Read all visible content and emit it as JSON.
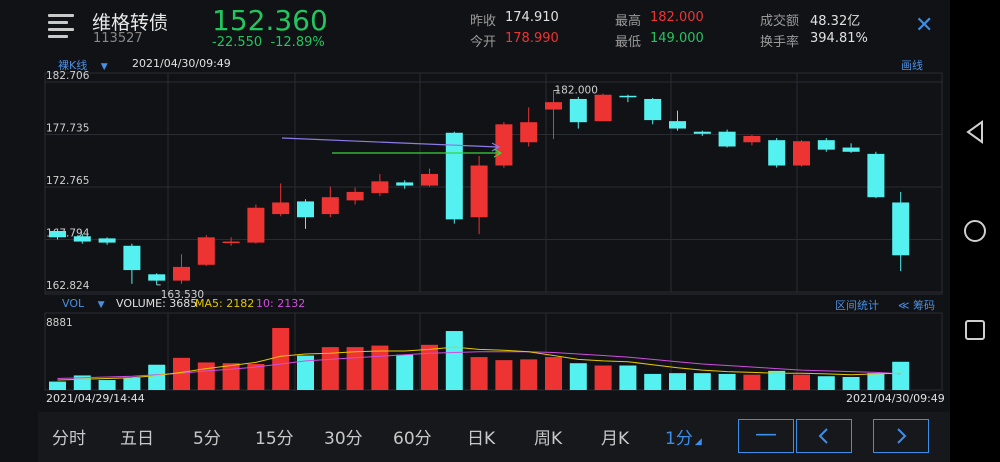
{
  "header": {
    "name": "维格转债",
    "code": "113527",
    "price": "152.360",
    "change": "-22.550",
    "change_pct": "-12.89%",
    "prev_close_label": "昨收",
    "prev_close": "174.910",
    "open_label": "今开",
    "open": "178.990",
    "high_label": "最高",
    "high": "182.000",
    "low_label": "最低",
    "low": "149.000",
    "turnover_label": "成交额",
    "turnover": "48.32亿",
    "turnover_rate_label": "换手率",
    "turnover_rate": "394.81%"
  },
  "kline_panel": {
    "mode_label": "裸K线",
    "timestamp": "2021/04/30/09:49",
    "draw_label": "画线",
    "high_mark": "182.000",
    "low_mark": "163.530"
  },
  "volume_panel": {
    "vol_label": "VOL",
    "volume_label": "VOLUME: 3685",
    "ma5_label": "MA5: 2182",
    "ma10_label": "10: 2132",
    "max_label": "8881",
    "interval_stats": "区间统计",
    "chips": "≪ 筹码",
    "start_time": "2021/04/29/14:44",
    "end_time": "2021/04/30/09:49"
  },
  "tabs": [
    "分时",
    "五日",
    "5分",
    "15分",
    "30分",
    "60分",
    "日K",
    "周K",
    "月K",
    "1分"
  ],
  "active_tab": "1分",
  "colors": {
    "up": "#ee3333",
    "down": "#55f0f0",
    "accent": "#3b8fe8",
    "green": "#22c55e",
    "ma5": "#e6c800",
    "ma10": "#d04ee0"
  },
  "icons": [
    "menu-icon",
    "close-icon",
    "minus-icon",
    "chevron-left-icon",
    "chevron-right-icon",
    "back-icon",
    "home-icon",
    "recents-icon"
  ],
  "chart_data": [
    {
      "type": "candlestick",
      "y_ticks": [
        182.706,
        177.735,
        172.765,
        167.794,
        162.824
      ],
      "ylim": [
        162.824,
        182.706
      ],
      "candles": [
        {
          "o": 168.6,
          "c": 168.0,
          "h": 168.8,
          "l": 167.8
        },
        {
          "o": 168.1,
          "c": 167.6,
          "h": 168.3,
          "l": 167.4
        },
        {
          "o": 167.9,
          "c": 167.5,
          "h": 168.0,
          "l": 167.3
        },
        {
          "o": 167.2,
          "c": 164.9,
          "h": 167.4,
          "l": 163.6
        },
        {
          "o": 164.5,
          "c": 163.9,
          "h": 164.6,
          "l": 163.5
        },
        {
          "o": 163.9,
          "c": 165.2,
          "h": 166.4,
          "l": 163.6
        },
        {
          "o": 165.4,
          "c": 168.0,
          "h": 168.2,
          "l": 165.3
        },
        {
          "o": 167.6,
          "c": 167.6,
          "h": 168.0,
          "l": 167.2
        },
        {
          "o": 167.5,
          "c": 170.8,
          "h": 171.1,
          "l": 167.4
        },
        {
          "o": 170.2,
          "c": 171.3,
          "h": 173.1,
          "l": 170.0
        },
        {
          "o": 171.4,
          "c": 169.9,
          "h": 171.6,
          "l": 168.8
        },
        {
          "o": 170.2,
          "c": 171.8,
          "h": 172.8,
          "l": 169.9
        },
        {
          "o": 171.5,
          "c": 172.3,
          "h": 172.7,
          "l": 171.1
        },
        {
          "o": 172.2,
          "c": 173.3,
          "h": 174.0,
          "l": 171.9
        },
        {
          "o": 173.2,
          "c": 172.9,
          "h": 173.4,
          "l": 172.6
        },
        {
          "o": 172.9,
          "c": 174.0,
          "h": 174.5,
          "l": 172.8
        },
        {
          "o": 177.9,
          "c": 169.7,
          "h": 178.0,
          "l": 169.3
        },
        {
          "o": 169.9,
          "c": 174.8,
          "h": 175.7,
          "l": 168.3
        },
        {
          "o": 174.8,
          "c": 178.7,
          "h": 178.9,
          "l": 174.6
        },
        {
          "o": 177.0,
          "c": 178.9,
          "h": 180.3,
          "l": 176.6
        },
        {
          "o": 180.1,
          "c": 180.8,
          "h": 181.9,
          "l": 177.3
        },
        {
          "o": 181.1,
          "c": 178.9,
          "h": 181.3,
          "l": 178.3
        },
        {
          "o": 179.0,
          "c": 181.5,
          "h": 181.6,
          "l": 179.0
        },
        {
          "o": 181.4,
          "c": 181.3,
          "h": 181.5,
          "l": 180.8
        },
        {
          "o": 181.1,
          "c": 179.1,
          "h": 181.2,
          "l": 178.7
        },
        {
          "o": 179.0,
          "c": 178.3,
          "h": 180.0,
          "l": 178.1
        },
        {
          "o": 178.0,
          "c": 177.8,
          "h": 178.1,
          "l": 177.6
        },
        {
          "o": 178.0,
          "c": 176.6,
          "h": 178.2,
          "l": 176.5
        },
        {
          "o": 177.0,
          "c": 177.6,
          "h": 177.7,
          "l": 176.7
        },
        {
          "o": 177.2,
          "c": 174.8,
          "h": 177.4,
          "l": 174.6
        },
        {
          "o": 174.8,
          "c": 177.1,
          "h": 177.2,
          "l": 174.7
        },
        {
          "o": 177.2,
          "c": 176.3,
          "h": 177.4,
          "l": 176.1
        },
        {
          "o": 176.5,
          "c": 176.1,
          "h": 176.9,
          "l": 176.0
        },
        {
          "o": 175.9,
          "c": 171.8,
          "h": 176.1,
          "l": 171.7
        },
        {
          "o": 171.3,
          "c": 166.3,
          "h": 172.3,
          "l": 164.8
        }
      ]
    },
    {
      "type": "bar",
      "ylim": [
        0,
        8881
      ],
      "values": [
        1100,
        1900,
        1300,
        1600,
        3300,
        4200,
        3600,
        3500,
        3400,
        8100,
        4500,
        5600,
        5600,
        5800,
        4600,
        5900,
        7700,
        4300,
        3900,
        4000,
        4300,
        3500,
        3200,
        3200,
        2100,
        2200,
        2200,
        2100,
        2000,
        2500,
        2000,
        1800,
        1700,
        2200,
        3685
      ],
      "ma5": [
        1300,
        1400,
        1500,
        1600,
        1900,
        2300,
        2800,
        3200,
        3600,
        4400,
        4700,
        4800,
        5000,
        5100,
        5100,
        5300,
        5600,
        5300,
        5200,
        5000,
        4500,
        4000,
        3800,
        3700,
        3300,
        2900,
        2600,
        2400,
        2300,
        2200,
        2200,
        2100,
        2000,
        2100,
        2182
      ],
      "ma10": [
        1500,
        1600,
        1700,
        1800,
        2000,
        2200,
        2500,
        2700,
        3000,
        3400,
        3800,
        4000,
        4200,
        4400,
        4600,
        4800,
        4900,
        5000,
        5000,
        5000,
        4900,
        4700,
        4500,
        4300,
        4000,
        3700,
        3400,
        3200,
        3000,
        2800,
        2600,
        2500,
        2400,
        2300,
        2132
      ]
    }
  ]
}
